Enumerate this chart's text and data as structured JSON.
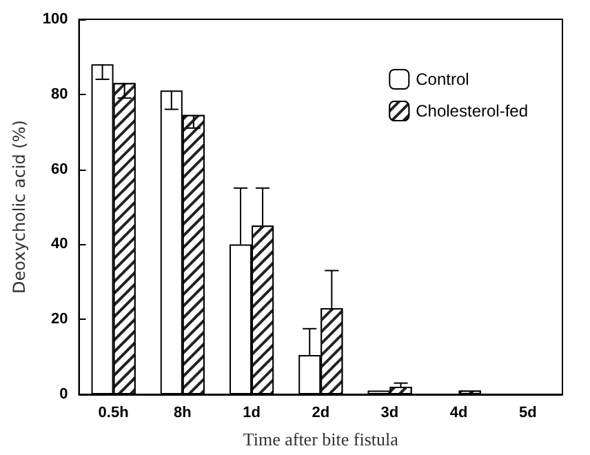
{
  "chart_data": {
    "type": "bar",
    "xlabel": "Time after bite fistula",
    "ylabel": "Deoxycholic acid (%)",
    "categories": [
      "0.5h",
      "8h",
      "1d",
      "2d",
      "3d",
      "4d",
      "5d"
    ],
    "series": [
      {
        "name": "Control",
        "color": "#ffffff",
        "values": [
          88,
          81,
          40,
          10.5,
          1,
          0,
          0
        ],
        "errors": [
          [
            84,
            88
          ],
          [
            76,
            81
          ],
          [
            40,
            55
          ],
          [
            10.5,
            17.5
          ],
          null,
          null,
          null
        ]
      },
      {
        "name": "Cholesterol-fed",
        "color": "#222222",
        "values": [
          83,
          74.5,
          45,
          23,
          2,
          1,
          0
        ],
        "errors": [
          [
            79,
            83
          ],
          [
            71,
            74.5
          ],
          [
            45,
            55
          ],
          [
            23,
            33
          ],
          [
            2,
            3
          ],
          null,
          null
        ]
      }
    ],
    "ylim": [
      0,
      100
    ],
    "yticks": [
      0,
      20,
      40,
      60,
      80,
      100
    ],
    "grid": false,
    "legend": "top right"
  }
}
